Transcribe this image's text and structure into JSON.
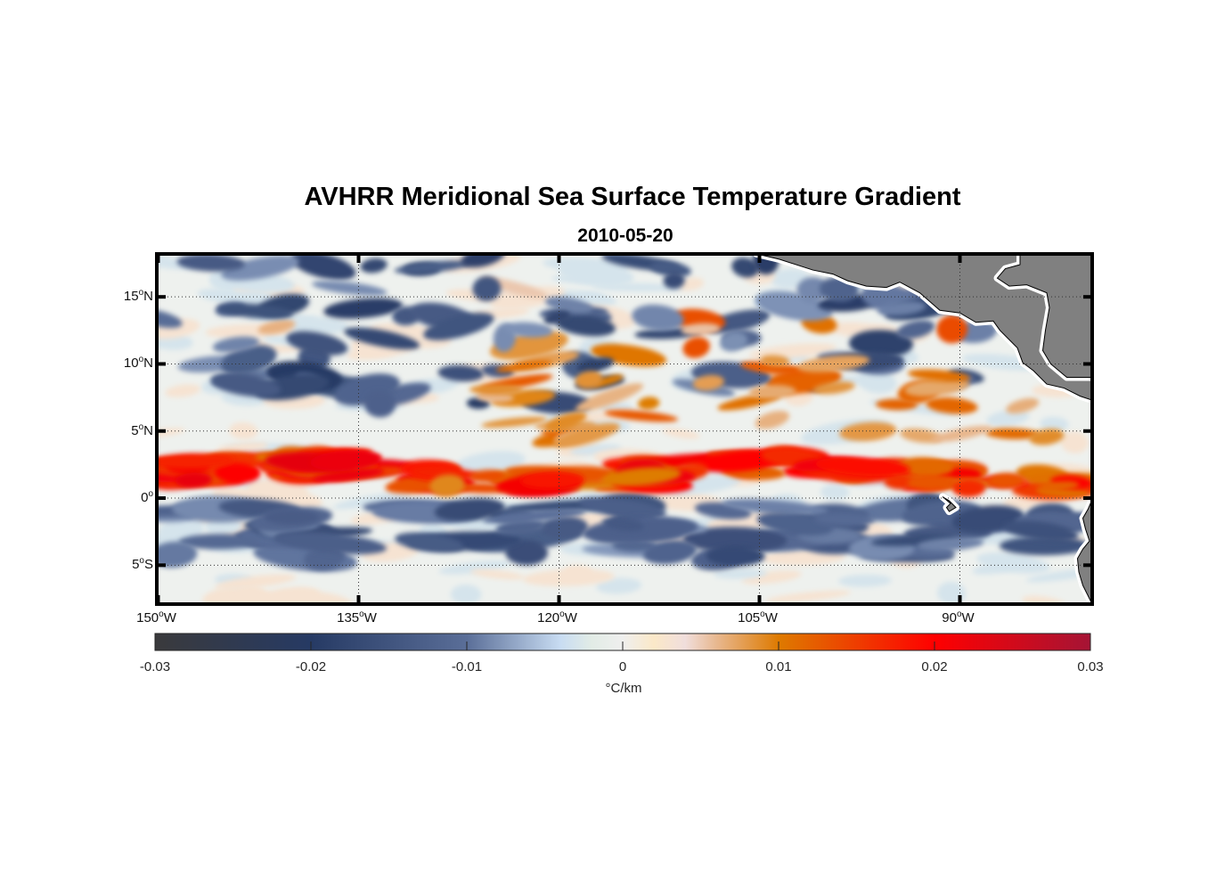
{
  "title": "AVHRR Meridional Sea Surface Temperature Gradient",
  "subtitle": "2010-05-20",
  "chart_data": {
    "type": "heatmap",
    "title": "AVHRR Meridional Sea Surface Temperature Gradient",
    "subtitle": "2010-05-20",
    "projection": "equirectangular map",
    "variable": "meridional SST gradient",
    "units": "°C/km",
    "lon_range": [
      -150.1,
      -80.1
    ],
    "lat_range": [
      -7.9,
      18.2
    ],
    "grid": true,
    "grid_style": "dotted",
    "xticks": [
      {
        "value": -150,
        "label": "150",
        "suffix": "W"
      },
      {
        "value": -135,
        "label": "135",
        "suffix": "W"
      },
      {
        "value": -120,
        "label": "120",
        "suffix": "W"
      },
      {
        "value": -105,
        "label": "105",
        "suffix": "W"
      },
      {
        "value": -90,
        "label": "90",
        "suffix": "W"
      }
    ],
    "yticks": [
      {
        "value": 15,
        "label": "15",
        "suffix": "N"
      },
      {
        "value": 10,
        "label": "10",
        "suffix": "N"
      },
      {
        "value": 5,
        "label": "5",
        "suffix": "N"
      },
      {
        "value": 0,
        "label": "0",
        "suffix": ""
      },
      {
        "value": -5,
        "label": "5",
        "suffix": "S"
      }
    ],
    "colorbar": {
      "orientation": "horizontal",
      "placement": "bottom",
      "range": [
        -0.03,
        0.03
      ],
      "ticks": [
        -0.03,
        -0.02,
        -0.01,
        0,
        0.01,
        0.02,
        0.03
      ],
      "tick_labels": [
        "-0.03",
        "-0.02",
        "-0.01",
        "0",
        "0.01",
        "0.02",
        "0.03"
      ],
      "label": "°C/km",
      "colormap_stops": [
        {
          "value": -0.03,
          "color": "#3a3a3c"
        },
        {
          "value": -0.02,
          "color": "#263a64"
        },
        {
          "value": -0.01,
          "color": "#5a6e98"
        },
        {
          "value": -0.004,
          "color": "#c8dcf2"
        },
        {
          "value": -0.002,
          "color": "#e2ece6"
        },
        {
          "value": 0,
          "color": "#efefee"
        },
        {
          "value": 0.002,
          "color": "#fbe8c8"
        },
        {
          "value": 0.004,
          "color": "#f0dedc"
        },
        {
          "value": 0.006,
          "color": "#e8b890"
        },
        {
          "value": 0.01,
          "color": "#de7a00"
        },
        {
          "value": 0.02,
          "color": "#ff0000"
        },
        {
          "value": 0.03,
          "color": "#a51435"
        }
      ]
    },
    "features": [
      {
        "name": "equatorial warm-gradient band",
        "lat_range": [
          0.5,
          4
        ],
        "sign": "positive",
        "peak_value": 0.025
      },
      {
        "name": "south-of-equator negative band",
        "lat_range": [
          -4,
          -0.5
        ],
        "sign": "negative",
        "peak_value": -0.015
      },
      {
        "name": "northern mixed eddies",
        "lat_range": [
          8,
          18
        ],
        "sign": "mostly negative"
      },
      {
        "name": "Central America / Mexico landmass",
        "color": "#808080"
      },
      {
        "name": "South America coast (Ecuador)",
        "color": "#808080"
      },
      {
        "name": "Galapagos Islands",
        "color": "#808080",
        "lon": -90.6,
        "lat": -0.6
      }
    ]
  },
  "colors": {
    "land": "#808080",
    "frame": "#000000",
    "grid": "#333333"
  }
}
